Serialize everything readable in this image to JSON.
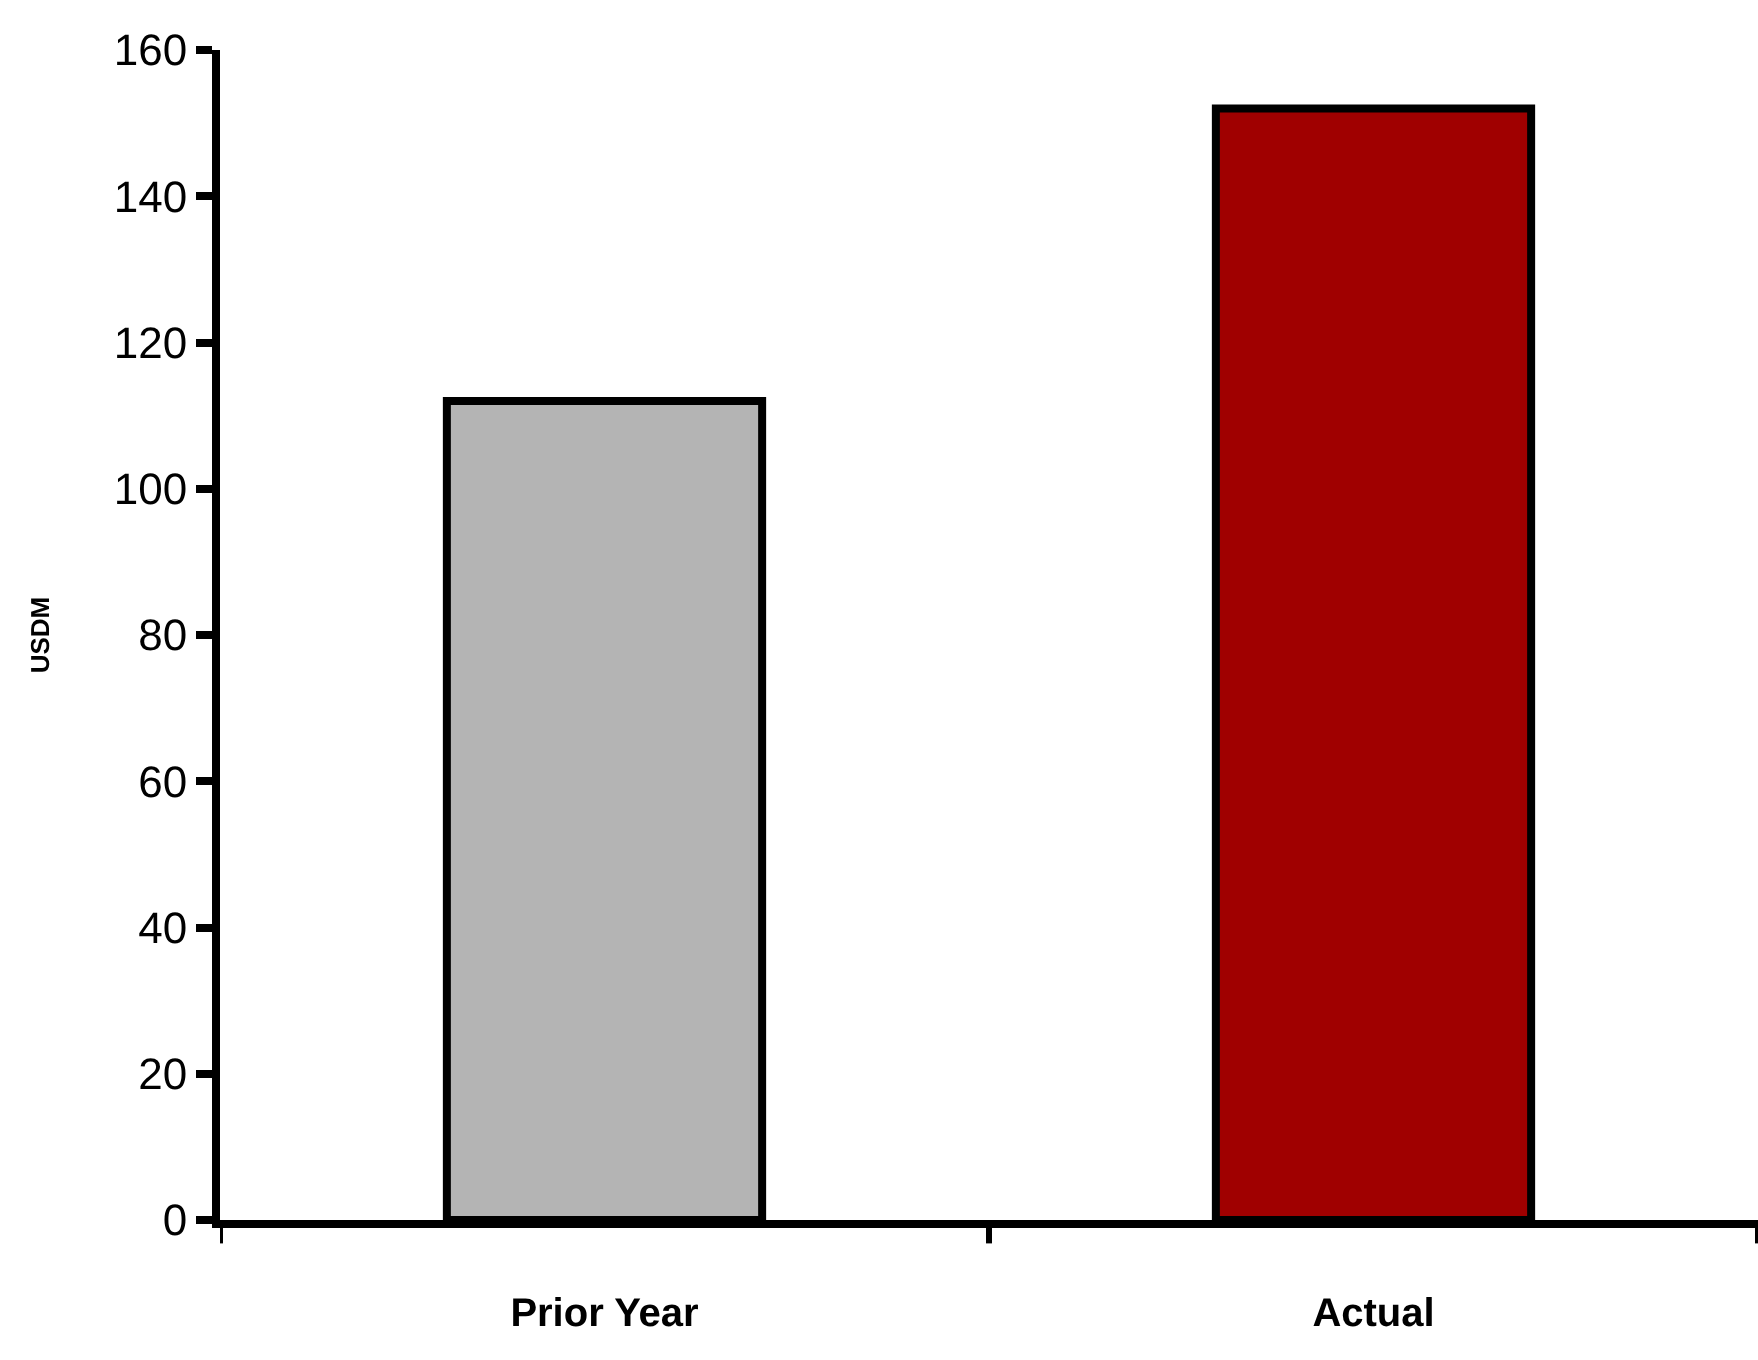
{
  "chart_data": {
    "type": "bar",
    "ylabel": "USDM",
    "categories": [
      "Prior Year",
      "Actual"
    ],
    "values": [
      112,
      152
    ],
    "colors": [
      "#b4b4b4",
      "#a00000"
    ],
    "ylim": [
      0,
      160
    ],
    "yticks": [
      0,
      20,
      40,
      60,
      80,
      100,
      120,
      140,
      160
    ]
  }
}
